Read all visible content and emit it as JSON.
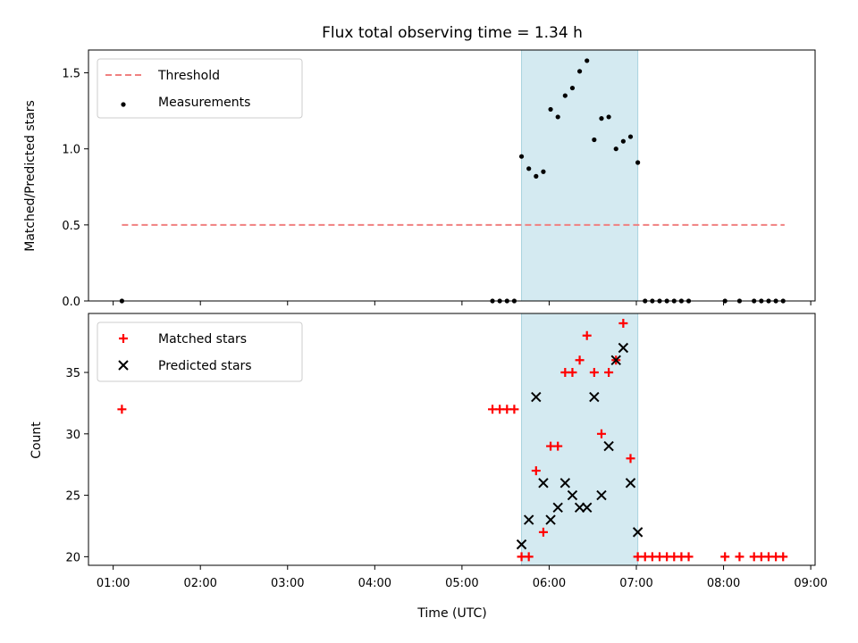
{
  "chart_data": {
    "title": "Flux total observing time = 1.34 h",
    "xlabel": "Time (UTC)",
    "x_ticks": [
      "01:00",
      "02:00",
      "03:00",
      "04:00",
      "05:00",
      "06:00",
      "07:00",
      "08:00",
      "09:00"
    ],
    "xlim": [
      "00:43",
      "09:03"
    ],
    "highlight": {
      "x_start": "05:41",
      "x_end": "07:01",
      "color": "#d4eaf1"
    },
    "panels": [
      {
        "type": "scatter",
        "ylabel": "Matched/Predicted stars",
        "ylim": [
          0,
          1.65
        ],
        "y_ticks": [
          "0.0",
          "0.5",
          "1.0",
          "1.5"
        ],
        "legend": {
          "position": "top-left",
          "entries": [
            "Threshold",
            "Measurements"
          ]
        },
        "series": [
          {
            "name": "Threshold",
            "style": "dashed-line",
            "color": "#f08080",
            "x": [
              "01:06",
              "08:42"
            ],
            "y": [
              0.5,
              0.5
            ]
          },
          {
            "name": "Measurements",
            "style": "dot",
            "color": "#000000",
            "x": [
              "01:06",
              "05:21",
              "05:26",
              "05:31",
              "05:36",
              "05:41",
              "05:46",
              "05:51",
              "05:56",
              "06:01",
              "06:06",
              "06:11",
              "06:16",
              "06:21",
              "06:26",
              "06:31",
              "06:36",
              "06:41",
              "06:46",
              "06:51",
              "06:56",
              "07:01",
              "07:06",
              "07:11",
              "07:16",
              "07:21",
              "07:26",
              "07:31",
              "07:36",
              "08:01",
              "08:11",
              "08:21",
              "08:26",
              "08:31",
              "08:36",
              "08:41"
            ],
            "y": [
              0,
              0,
              0,
              0,
              0,
              0.95,
              0.87,
              0.82,
              0.85,
              1.26,
              1.21,
              1.35,
              1.4,
              1.51,
              1.58,
              1.06,
              1.2,
              1.21,
              1.0,
              1.05,
              1.08,
              0.91,
              0,
              0,
              0,
              0,
              0,
              0,
              0,
              0,
              0,
              0,
              0,
              0,
              0,
              0
            ]
          }
        ]
      },
      {
        "type": "scatter",
        "ylabel": "Count",
        "ylim": [
          19.3,
          39.8
        ],
        "y_ticks": [
          "20",
          "25",
          "30",
          "35"
        ],
        "legend": {
          "position": "top-left",
          "entries": [
            "Matched stars",
            "Predicted stars"
          ]
        },
        "series": [
          {
            "name": "Matched stars",
            "style": "plus",
            "color": "#ff0000",
            "x": [
              "01:06",
              "05:21",
              "05:26",
              "05:31",
              "05:36",
              "05:41",
              "05:46",
              "05:51",
              "05:56",
              "06:01",
              "06:06",
              "06:11",
              "06:16",
              "06:21",
              "06:26",
              "06:31",
              "06:36",
              "06:41",
              "06:46",
              "06:51",
              "06:56",
              "07:01",
              "07:06",
              "07:11",
              "07:16",
              "07:21",
              "07:26",
              "07:31",
              "07:36",
              "08:01",
              "08:11",
              "08:21",
              "08:26",
              "08:31",
              "08:36",
              "08:41"
            ],
            "y": [
              32,
              32,
              32,
              32,
              32,
              20,
              20,
              27,
              22,
              29,
              29,
              35,
              35,
              36,
              38,
              35,
              30,
              35,
              36,
              39,
              28,
              20,
              20,
              20,
              20,
              20,
              20,
              20,
              20,
              20,
              20,
              20,
              20,
              20,
              20,
              20
            ]
          },
          {
            "name": "Predicted stars",
            "style": "x",
            "color": "#000000",
            "x": [
              "05:41",
              "05:46",
              "05:51",
              "05:56",
              "06:01",
              "06:06",
              "06:11",
              "06:16",
              "06:21",
              "06:26",
              "06:31",
              "06:36",
              "06:41",
              "06:46",
              "06:51",
              "06:56",
              "07:01"
            ],
            "y": [
              21,
              23,
              33,
              26,
              23,
              24,
              26,
              25,
              24,
              24,
              33,
              25,
              29,
              36,
              37,
              26,
              22
            ]
          }
        ]
      }
    ]
  }
}
